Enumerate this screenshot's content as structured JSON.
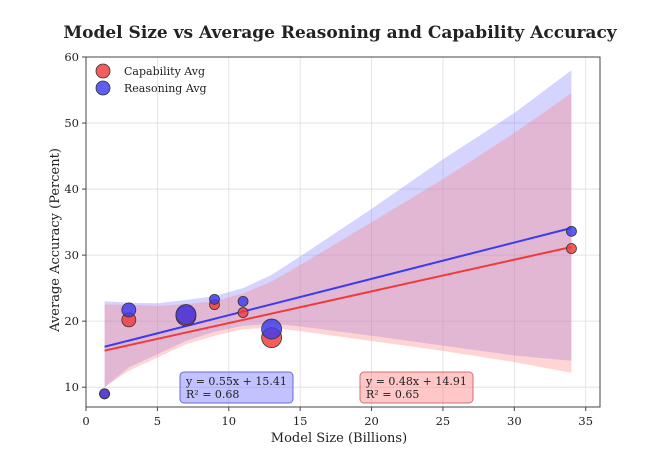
{
  "chart_data": {
    "type": "scatter",
    "title": "Model Size vs Average Reasoning and Capability Accuracy",
    "xlabel": "Model Size (Billions)",
    "ylabel": "Average Accuracy (Percent)",
    "xlim": [
      0,
      36
    ],
    "ylim": [
      7,
      60
    ],
    "xticks": [
      0,
      5,
      10,
      15,
      20,
      25,
      30,
      35
    ],
    "yticks": [
      10,
      20,
      30,
      40,
      50,
      60
    ],
    "grid": true,
    "legend_position": "top-left",
    "series": [
      {
        "name": "Capability Avg",
        "color": "#ef3b3b",
        "points": [
          {
            "x": 1.3,
            "y": 9.0,
            "size": "small"
          },
          {
            "x": 3.0,
            "y": 20.2,
            "size": "medium"
          },
          {
            "x": 7.0,
            "y": 20.8,
            "size": "large"
          },
          {
            "x": 9.0,
            "y": 22.5,
            "size": "small"
          },
          {
            "x": 11.0,
            "y": 21.3,
            "size": "small"
          },
          {
            "x": 13.0,
            "y": 17.5,
            "size": "large"
          },
          {
            "x": 34.0,
            "y": 31.0,
            "size": "small"
          }
        ],
        "fit": {
          "slope": 0.48,
          "intercept": 14.91,
          "r2": 0.65,
          "x_range": [
            1.3,
            34.0
          ]
        },
        "ci_band": {
          "x": [
            1.3,
            3,
            5,
            7,
            9,
            11,
            13,
            15,
            20,
            25,
            30,
            34
          ],
          "lower": [
            10.0,
            12.5,
            14.5,
            16.5,
            17.8,
            18.8,
            19.0,
            18.5,
            17.0,
            15.5,
            13.8,
            12.2
          ],
          "upper": [
            22.5,
            22.5,
            22.3,
            22.6,
            23.0,
            24.2,
            26.0,
            28.5,
            35.0,
            41.5,
            48.5,
            54.5
          ]
        },
        "equation_label": "y = 0.48x + 14.91",
        "r2_label": "R² = 0.65"
      },
      {
        "name": "Reasoning Avg",
        "color": "#3b3bef",
        "points": [
          {
            "x": 1.3,
            "y": 9.0,
            "size": "small"
          },
          {
            "x": 3.0,
            "y": 21.7,
            "size": "medium"
          },
          {
            "x": 7.0,
            "y": 21.0,
            "size": "large"
          },
          {
            "x": 9.0,
            "y": 23.3,
            "size": "small"
          },
          {
            "x": 11.0,
            "y": 23.0,
            "size": "small"
          },
          {
            "x": 13.0,
            "y": 18.8,
            "size": "large"
          },
          {
            "x": 34.0,
            "y": 33.6,
            "size": "small"
          }
        ],
        "fit": {
          "slope": 0.55,
          "intercept": 15.41,
          "r2": 0.68,
          "x_range": [
            1.3,
            34.0
          ]
        },
        "ci_band": {
          "x": [
            1.3,
            3,
            5,
            7,
            9,
            11,
            13,
            15,
            20,
            25,
            30,
            34
          ],
          "lower": [
            10.0,
            13.0,
            15.0,
            17.0,
            18.4,
            19.3,
            19.6,
            19.2,
            17.8,
            16.3,
            14.8,
            14.0
          ],
          "upper": [
            23.0,
            22.8,
            22.7,
            23.2,
            23.8,
            25.0,
            27.0,
            29.8,
            37.0,
            44.5,
            51.5,
            58.0
          ]
        },
        "equation_label": "y = 0.55x + 15.41",
        "r2_label": "R² = 0.68"
      }
    ]
  }
}
